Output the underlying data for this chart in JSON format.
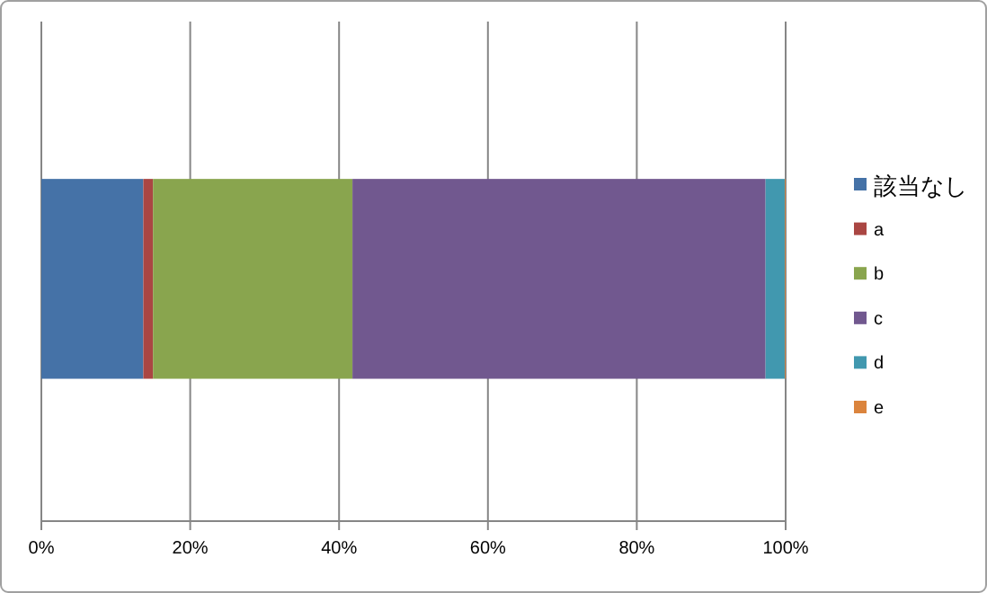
{
  "chart_data": {
    "type": "bar",
    "orientation": "horizontal",
    "stacked": true,
    "categories": [
      null
    ],
    "series": [
      {
        "name": "該当なし",
        "color": "#4572a7",
        "values": [
          13.7
        ]
      },
      {
        "name": "a",
        "color": "#aa4643",
        "values": [
          1.3
        ]
      },
      {
        "name": "b",
        "color": "#89a54e",
        "values": [
          26.8
        ]
      },
      {
        "name": "c",
        "color": "#71588f",
        "values": [
          55.5
        ]
      },
      {
        "name": "d",
        "color": "#4198af",
        "values": [
          2.6
        ]
      },
      {
        "name": "e",
        "color": "#db843d",
        "values": [
          0.1
        ]
      }
    ],
    "xlim": [
      0,
      100
    ],
    "xticks": [
      {
        "value": 0,
        "label": "0%"
      },
      {
        "value": 20,
        "label": "20%"
      },
      {
        "value": 40,
        "label": "40%"
      },
      {
        "value": 60,
        "label": "60%"
      },
      {
        "value": 80,
        "label": "80%"
      },
      {
        "value": 100,
        "label": "100%"
      }
    ],
    "grid": "x",
    "legend": "right"
  }
}
